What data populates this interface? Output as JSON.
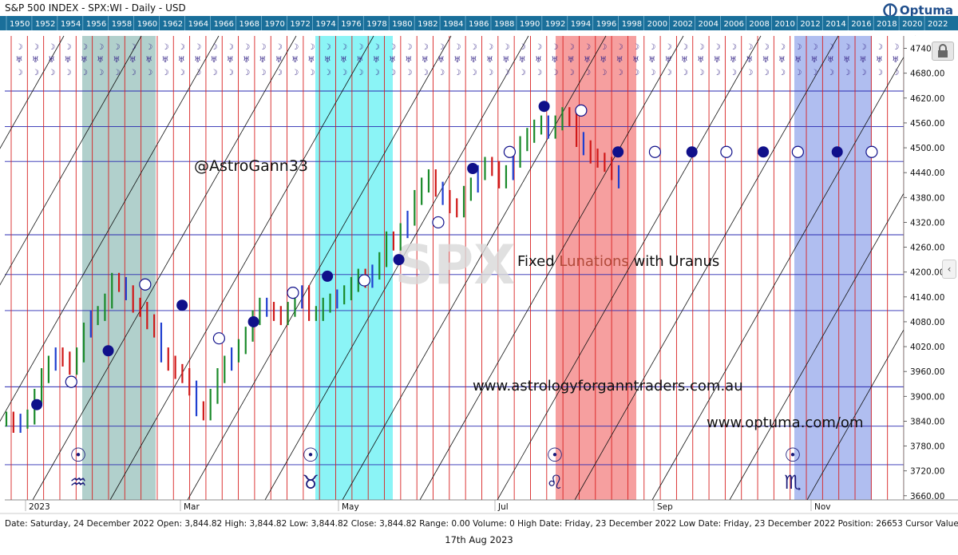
{
  "header": {
    "title": "S&P 500 INDEX - SPX:WI - Daily - USD",
    "logo_text": "Optuma"
  },
  "status_bar": {
    "text": "Date: Saturday, 24 December 2022 Open: 3,844.82 High: 3,844.82 Low: 3,844.82 Close: 3,844.82 Range: 0.00 Volume: 0 High Date: Friday, 23 December 2022 Low Date: Friday, 23 December 2022 Position: 26653 Cursor Value : 433"
  },
  "footer": {
    "date": "17th Aug 2023"
  },
  "tools": {
    "lock_icon": "lock-icon",
    "expand_icon": "chevron-left-icon"
  },
  "chart_data": {
    "type": "candlestick",
    "watermark": "SPX",
    "annotations": {
      "handle": "@AstroGann33",
      "heading_prefix": "Fixed",
      "heading_mid": "Lunations",
      "heading_suffix": "with Uranus",
      "url_1": "www.astrologyforganntraders.com.au",
      "url_2": "www.optuma.com/om"
    },
    "top_axis_years": [
      "1950",
      "1952",
      "1954",
      "1956",
      "1958",
      "1960",
      "1962",
      "1964",
      "1966",
      "1968",
      "1970",
      "1972",
      "1974",
      "1976",
      "1978",
      "1980",
      "1982",
      "1984",
      "1986",
      "1988",
      "1990",
      "1992",
      "1994",
      "1996",
      "1998",
      "2000",
      "2002",
      "2004",
      "2006",
      "2008",
      "2010",
      "2012",
      "2014",
      "2016",
      "2018",
      "2020",
      "2022"
    ],
    "x_axis_labels": [
      "2023",
      "Mar",
      "May",
      "Jul",
      "Sep",
      "Nov"
    ],
    "y_ticks": [
      3660,
      3720,
      3780,
      3840,
      3900,
      3960,
      4020,
      4080,
      4140,
      4200,
      4260,
      4320,
      4380,
      4440,
      4500,
      4560,
      4620,
      4680,
      4740
    ],
    "y_range": [
      3650,
      4770
    ],
    "horizontal_levels": [
      3735,
      3828,
      3923,
      4107,
      4194,
      4290,
      4467,
      4551,
      4637
    ],
    "vertical_cycle_line_count": 56,
    "highlight_bands": [
      {
        "sign": "Aquarius",
        "sign_glyph": "♒",
        "color": "#a9cbc6"
      },
      {
        "sign": "Taurus",
        "sign_glyph": "♉",
        "color": "#7ef3f5"
      },
      {
        "sign": "Leo",
        "sign_glyph": "♌",
        "color": "#f58e8e"
      },
      {
        "sign": "Scorpio",
        "sign_glyph": "♏",
        "color": "#a7b7ee"
      }
    ],
    "sun_glyph": "☉",
    "planet_glyphs": [
      "☽",
      "♅"
    ],
    "lunation_markers": [
      {
        "date": "2022-12-23",
        "price": 3880,
        "phase": "new"
      },
      {
        "date": "2023-01-06",
        "price": 3935,
        "phase": "full"
      },
      {
        "date": "2023-01-21",
        "price": 4010,
        "phase": "new"
      },
      {
        "date": "2023-02-05",
        "price": 4170,
        "phase": "full"
      },
      {
        "date": "2023-02-20",
        "price": 4120,
        "phase": "new"
      },
      {
        "date": "2023-03-07",
        "price": 4040,
        "phase": "full"
      },
      {
        "date": "2023-03-21",
        "price": 4080,
        "phase": "new"
      },
      {
        "date": "2023-04-06",
        "price": 4150,
        "phase": "full"
      },
      {
        "date": "2023-04-20",
        "price": 4190,
        "phase": "new"
      },
      {
        "date": "2023-05-05",
        "price": 4180,
        "phase": "full"
      },
      {
        "date": "2023-05-19",
        "price": 4230,
        "phase": "new"
      },
      {
        "date": "2023-06-04",
        "price": 4320,
        "phase": "full"
      },
      {
        "date": "2023-06-18",
        "price": 4450,
        "phase": "new"
      },
      {
        "date": "2023-07-03",
        "price": 4490,
        "phase": "full"
      },
      {
        "date": "2023-07-17",
        "price": 4600,
        "phase": "new"
      },
      {
        "date": "2023-08-01",
        "price": 4590,
        "phase": "full"
      },
      {
        "date": "2023-08-16",
        "price": 4490,
        "phase": "new"
      },
      {
        "date": "2023-08-31",
        "price": 4490,
        "phase": "full"
      },
      {
        "date": "2023-09-15",
        "price": 4490,
        "phase": "new"
      },
      {
        "date": "2023-09-29",
        "price": 4490,
        "phase": "full"
      },
      {
        "date": "2023-10-14",
        "price": 4490,
        "phase": "new"
      },
      {
        "date": "2023-10-28",
        "price": 4490,
        "phase": "full"
      },
      {
        "date": "2023-11-13",
        "price": 4490,
        "phase": "new"
      },
      {
        "date": "2023-11-27",
        "price": 4490,
        "phase": "full"
      }
    ],
    "price_series": {
      "description": "SPX daily closes Dec 2022 - Aug 2023 (approx.)",
      "closes": [
        3845,
        3830,
        3840,
        3850,
        3900,
        3950,
        3980,
        4000,
        3990,
        3970,
        4000,
        4060,
        4090,
        4100,
        4130,
        4180,
        4170,
        4150,
        4120,
        4110,
        4080,
        4060,
        4000,
        3980,
        3960,
        3950,
        3920,
        3870,
        3860,
        3900,
        3950,
        3980,
        4000,
        4020,
        4050,
        4090,
        4120,
        4110,
        4100,
        4090,
        4110,
        4130,
        4150,
        4100,
        4100,
        4120,
        4130,
        4140,
        4150,
        4170,
        4190,
        4180,
        4200,
        4230,
        4280,
        4270,
        4300,
        4330,
        4380,
        4410,
        4430,
        4400,
        4380,
        4360,
        4350,
        4390,
        4410,
        4440,
        4460,
        4450,
        4420,
        4440,
        4470,
        4510,
        4530,
        4550,
        4560,
        4540,
        4560,
        4580,
        4570,
        4520,
        4500,
        4480,
        4470,
        4460,
        4440,
        4420
      ]
    }
  }
}
